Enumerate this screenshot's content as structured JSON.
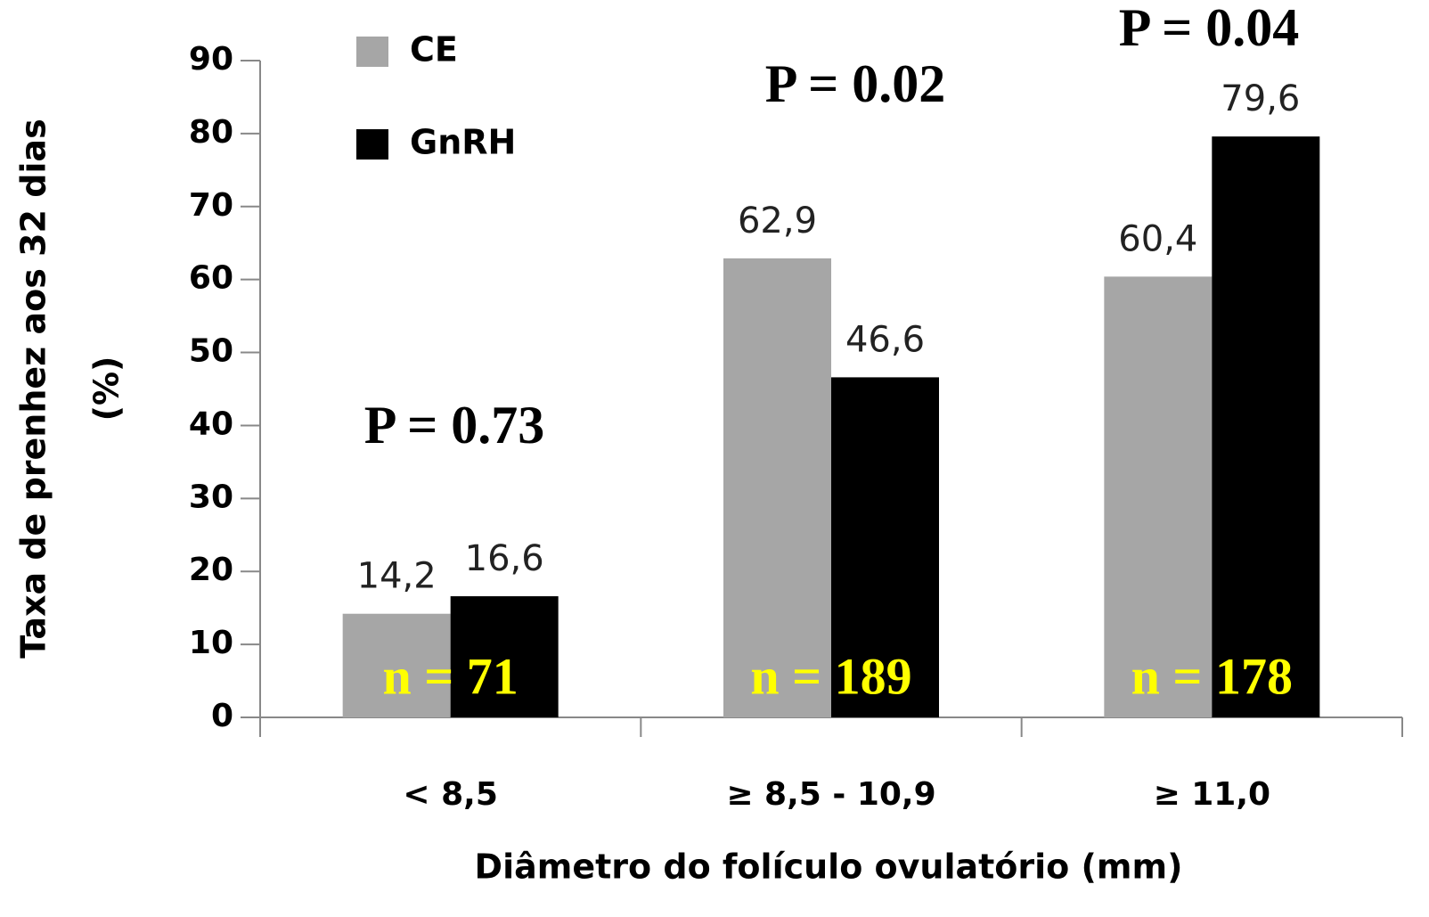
{
  "chart_data": {
    "type": "bar",
    "ylabel": [
      "Taxa de prenhez aos 32 dias",
      "(%)"
    ],
    "xlabel": "Diâmetro do folículo ovulatório (mm)",
    "categories": [
      "< 8,5",
      "≥ 8,5 - 10,9",
      "≥ 11,0"
    ],
    "series": [
      {
        "name": "CE",
        "color": "#a6a6a6",
        "values": [
          14.2,
          62.9,
          60.4
        ],
        "value_labels": [
          "14,2",
          "62,9",
          "60,4"
        ]
      },
      {
        "name": "GnRH",
        "color": "#000000",
        "values": [
          16.6,
          46.6,
          79.6
        ],
        "value_labels": [
          "16,6",
          "46,6",
          "79,6"
        ]
      }
    ],
    "p_values": [
      "P = 0.73",
      "P = 0.02",
      "P = 0.04"
    ],
    "n_labels": [
      "n = 71",
      "n = 189",
      "n = 178"
    ],
    "ylim": [
      0,
      90
    ],
    "yticks": [
      0,
      10,
      20,
      30,
      40,
      50,
      60,
      70,
      80,
      90
    ],
    "legend": "top-left"
  }
}
